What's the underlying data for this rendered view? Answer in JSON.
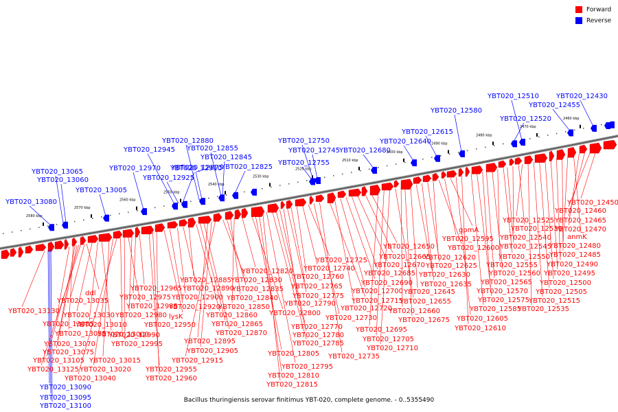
{
  "legend": {
    "forward_label": "Forward",
    "reverse_label": "Reverse",
    "forward_color": "#ff0000",
    "reverse_color": "#0000ff"
  },
  "caption": "Bacillus thuringiensis serovar finitimus YBT-020, complete genome. - 0..5355490",
  "scale_labels": [
    "2580 kbp",
    "2570 kbp",
    "2560 kbp",
    "2550 kbp",
    "2540 kbp",
    "2530 kbp",
    "2520 kbp",
    "2510 kbp",
    "2500 kbp",
    "2490 kbp",
    "2480 kbp",
    "2470 kbp",
    "2460 kbp"
  ],
  "reverse_genes": [
    "YBT020_13080",
    "YBT020_13065",
    "YBT020_13060",
    "YBT020_13005",
    "YBT020_12970",
    "YBT020_12945",
    "YBT020_12925",
    "YBT020_12910",
    "YBT020_12880",
    "YBT020_12875",
    "YBT020_12855",
    "YBT020_12845",
    "YBT020_12825",
    "YBT020_12755",
    "YBT020_12750",
    "YBT020_12745",
    "YBT020_12680",
    "YBT020_12640",
    "YBT020_12615",
    "YBT020_12580",
    "YBT020_12520",
    "YBT020_12510",
    "YBT020_12455",
    "YBT020_12430",
    "YBT020_13090",
    "YBT020_13095",
    "YBT020_13100"
  ],
  "forward_genes": [
    "YBT020_13130",
    "YBT020_13085",
    "YBT020_13055",
    "YBT020_13070",
    "YBT020_13075",
    "YBT020_13105",
    "YBT020_13125",
    "YBT020_13035",
    "ddl",
    "YBT020_13030",
    "YBT020_13010",
    "YBT020_13000",
    "YBT020_13015",
    "YBT020_13020",
    "YBT020_13040",
    "YBT020_12990",
    "YBT020_12995",
    "YBT020_12985",
    "YBT020_12980",
    "YBT020_12975",
    "YBT020_12965",
    "YBT020_12955",
    "YBT020_12960",
    "YBT020_12950",
    "lysK",
    "YBT020_12920",
    "YBT020_12900",
    "YBT020_12890",
    "YBT020_12885",
    "YBT020_12860",
    "YBT020_12865",
    "YBT020_12870",
    "YBT020_12895",
    "YBT020_12905",
    "YBT020_12915",
    "YBT020_12830",
    "YBT020_12835",
    "YBT020_12840",
    "YBT020_12850",
    "YBT020_12820",
    "YBT020_12800",
    "YBT020_12805",
    "YBT020_12810",
    "YBT020_12815",
    "YBT020_12795",
    "YBT020_12785",
    "YBT020_12780",
    "YBT020_12770",
    "YBT020_12790",
    "YBT020_12775",
    "YBT020_12765",
    "YBT020_12760",
    "YBT020_12740",
    "YBT020_12725",
    "YBT020_12730",
    "YBT020_12735",
    "YBT020_12715",
    "YBT020_12720",
    "YBT020_12700",
    "YBT020_12690",
    "YBT020_12685",
    "YBT020_12670",
    "YBT020_12665",
    "YBT020_12650",
    "YBT020_12695",
    "YBT020_12705",
    "YBT020_12710",
    "YBT020_12655",
    "YBT020_12660",
    "YBT020_12675",
    "YBT020_12645",
    "YBT020_12635",
    "YBT020_12630",
    "YBT020_12625",
    "YBT020_12620",
    "YBT020_12600",
    "YBT020_12595",
    "gpmA",
    "YBT020_12605",
    "YBT020_12610",
    "YBT020_12585",
    "YBT020_12575",
    "YBT020_12570",
    "YBT020_12565",
    "YBT020_12560",
    "YBT020_12555",
    "YBT020_12550",
    "YBT020_12545",
    "YBT020_12540",
    "YBT020_12530",
    "YBT020_12525",
    "YBT020_12535",
    "YBT020_12515",
    "YBT020_12505",
    "YBT020_12500",
    "YBT020_12495",
    "YBT020_12490",
    "YBT020_12485",
    "YBT020_12480",
    "anmK",
    "YBT020_12470",
    "YBT020_12465",
    "YBT020_12460",
    "YBT020_12450"
  ]
}
